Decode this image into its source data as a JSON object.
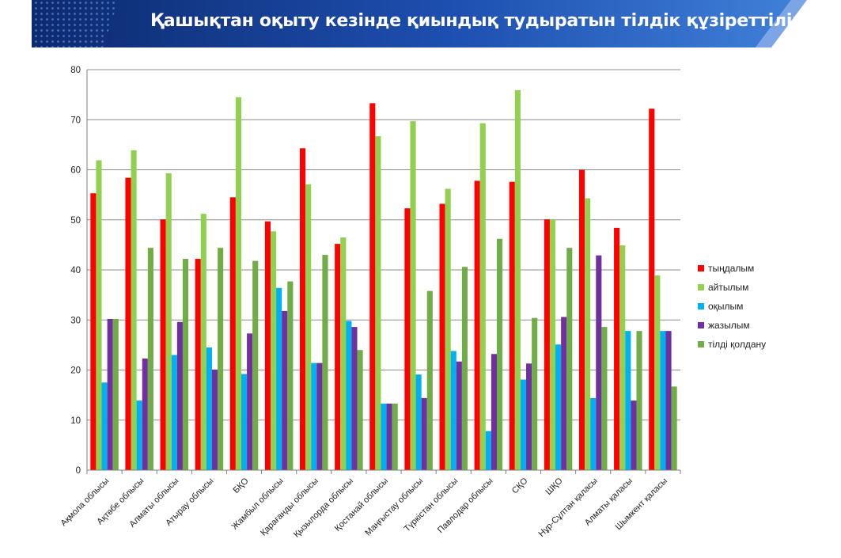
{
  "header": {
    "title": "Қашықтан оқыту кезінде қиындық тудыратын тілдік құзіреттіліктер",
    "colors": {
      "dark": "#0d2a6e",
      "mid": "#1d4fb0",
      "light": "#3f7fd8"
    }
  },
  "chart_data": {
    "type": "bar",
    "title": "",
    "xlabel": "",
    "ylabel": "",
    "ylim": [
      0,
      80
    ],
    "yticks": [
      0,
      10,
      20,
      30,
      40,
      50,
      60,
      70,
      80
    ],
    "grid": true,
    "legend_position": "right",
    "categories": [
      "Ақмола облысы",
      "Ақтөбе облысы",
      "Алматы облысы",
      "Атырау облысы",
      "БҚО",
      "Жамбыл облысы",
      "Қарағанды облысы",
      "Қызылорда облысы",
      "Қостанай облысы",
      "Маңғыстау облысы",
      "Түркістан облысы",
      "Павлодар облысы",
      "СҚО",
      "ШҚО",
      "Нұр-Сұлтан қаласы",
      "Алматы қаласы",
      "Шымкент қаласы"
    ],
    "series": [
      {
        "name": "тыңдалым",
        "color": "#ff0000",
        "values": [
          55.3,
          58.4,
          50.1,
          42.2,
          54.5,
          49.7,
          64.3,
          45.2,
          73.3,
          52.3,
          53.2,
          57.8,
          57.6,
          50.1,
          60.0,
          48.4,
          72.2
        ]
      },
      {
        "name": "айтылым",
        "color": "#92d050",
        "values": [
          61.9,
          63.9,
          59.3,
          51.2,
          74.5,
          47.7,
          57.1,
          46.5,
          66.7,
          69.7,
          56.2,
          69.3,
          75.9,
          50.1,
          54.3,
          44.9,
          38.9
        ]
      },
      {
        "name": "оқылым",
        "color": "#00b0f0",
        "values": [
          17.5,
          13.9,
          23.0,
          24.5,
          19.2,
          36.4,
          21.4,
          29.8,
          13.3,
          19.1,
          23.8,
          7.8,
          18.1,
          25.1,
          14.4,
          27.8,
          27.8
        ]
      },
      {
        "name": "жазылым",
        "color": "#7030a0",
        "values": [
          30.2,
          22.3,
          29.6,
          20.1,
          27.3,
          31.8,
          21.4,
          28.6,
          13.3,
          14.4,
          21.7,
          23.2,
          21.3,
          30.6,
          42.9,
          13.9,
          27.8
        ]
      },
      {
        "name": "тілді қолдану",
        "color": "#70ad47",
        "values": [
          30.2,
          44.4,
          42.2,
          44.4,
          41.8,
          37.7,
          43.0,
          24.0,
          13.3,
          35.8,
          40.6,
          46.2,
          30.4,
          44.4,
          28.6,
          27.8,
          16.7
        ]
      }
    ]
  }
}
